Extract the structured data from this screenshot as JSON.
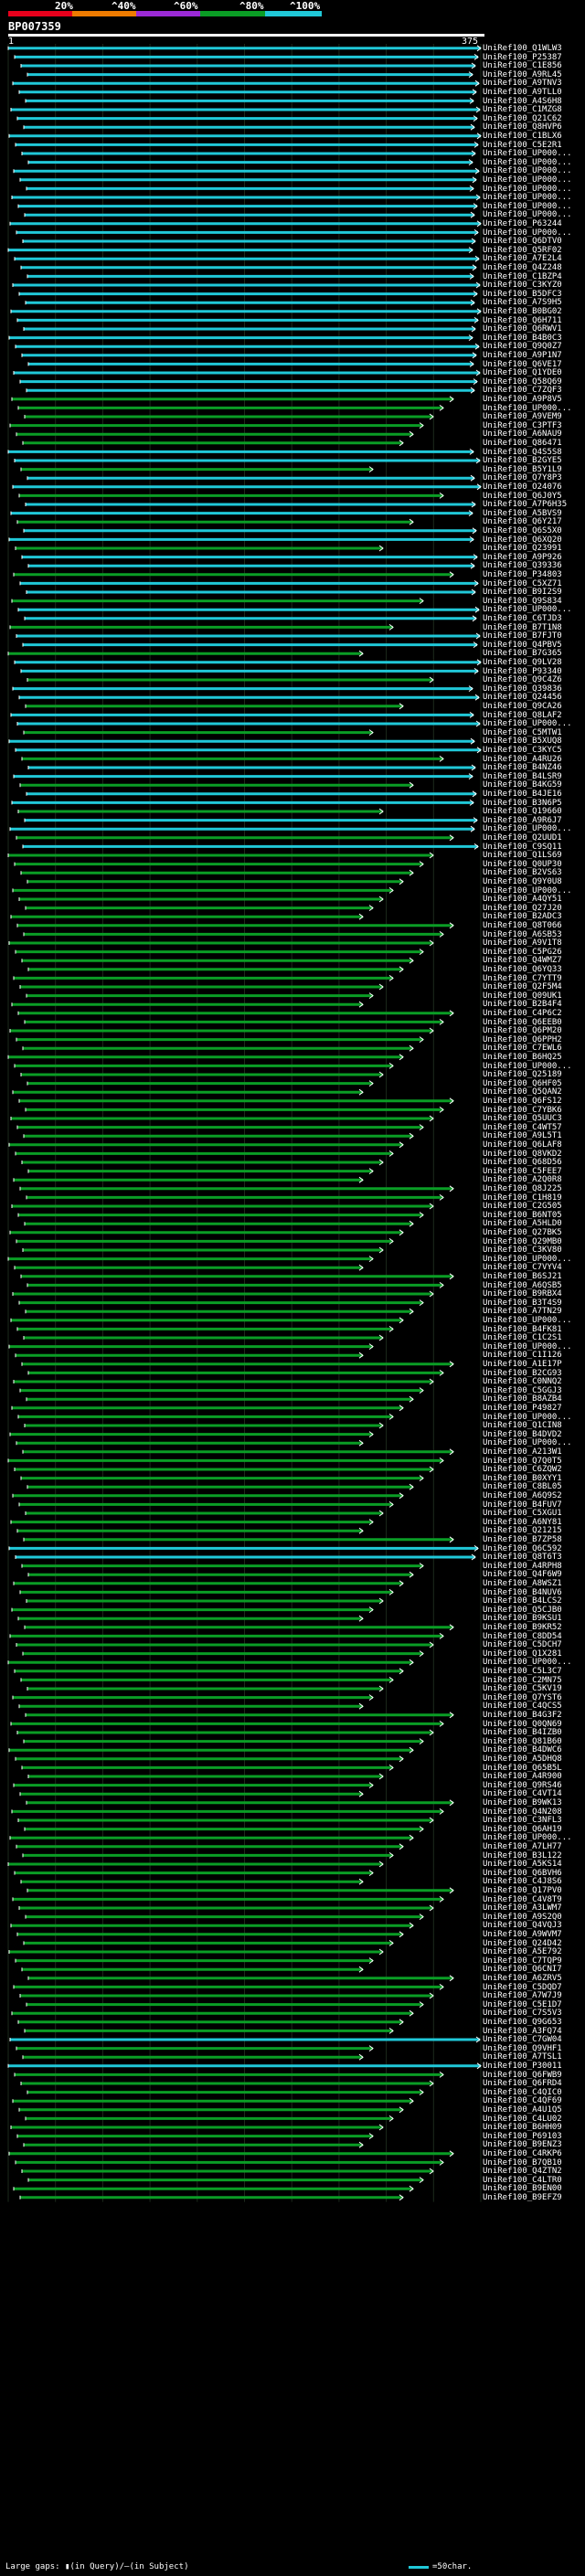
{
  "header": {
    "percent_labels": [
      "20%",
      "^40%",
      "^60%",
      "^80%",
      "^100%"
    ],
    "color_scale": [
      "#e8001c",
      "#ee7b00",
      "#9b2ad6",
      "#0a9d25",
      "#20c8d8"
    ],
    "query_id": "BP007359",
    "query_start": "1",
    "query_end": "375"
  },
  "hits": [
    "UniRef100_Q1WLW3",
    "UniRef100_P25387",
    "UniRef100_C1E856",
    "UniRef100_A9RL45",
    "UniRef100_A9TNV3",
    "UniRef100_A9TLL0",
    "UniRef100_A4S6H8",
    "UniRef100_C1MZG8",
    "UniRef100_Q21C62",
    "UniRef100_Q8HVP6",
    "UniRef100_C1BLX6",
    "UniRef100_C5E2R1",
    "UniRef100_UP000...",
    "UniRef100_UP000...",
    "UniRef100_UP000...",
    "UniRef100_UP000...",
    "UniRef100_UP000...",
    "UniRef100_UP000...",
    "UniRef100_UP000...",
    "UniRef100_UP000...",
    "UniRef100_P63244",
    "UniRef100_UP000...",
    "UniRef100_Q6DTV0",
    "UniRef100_Q5RF02",
    "UniRef100_A7E2L4",
    "UniRef100_Q4Z248",
    "UniRef100_C1BZP4",
    "UniRef100_C3KYZ0",
    "UniRef100_B5DFC3",
    "UniRef100_A7S9H5",
    "UniRef100_B0BG02",
    "UniRef100_Q6H711",
    "UniRef100_Q6RWV1",
    "UniRef100_B4B0C3",
    "UniRef100_Q9Q0Z7",
    "UniRef100_A9P1N7",
    "UniRef100_Q6VE17",
    "UniRef100_Q1YDE0",
    "UniRef100_Q58Q69",
    "UniRef100_C7ZQF3",
    "UniRef100_A9P8V5",
    "UniRef100_UP000...",
    "UniRef100_A9VEM9",
    "UniRef100_C3PTF3",
    "UniRef100_A6NAU9",
    "UniRef100_Q86471",
    "UniRef100_Q4S5S8",
    "UniRef100_B2GYE5",
    "UniRef100_B5Y1L9",
    "UniRef100_Q7Y8P3",
    "UniRef100_O24076",
    "UniRef100_Q6J0Y5",
    "UniRef100_A7P6H35",
    "UniRef100_A5BVS9",
    "UniRef100_Q6Y217",
    "UniRef100_Q6S5X0",
    "UniRef100_Q6XQ20",
    "UniRef100_Q23991",
    "UniRef100_A9P926",
    "UniRef100_Q39336",
    "UniRef100_P34803",
    "UniRef100_C5XZ71",
    "UniRef100_B9I2S9",
    "UniRef100_Q9S834",
    "UniRef100_UP000...",
    "UniRef100_C6TJD3",
    "UniRef100_B7T1N8",
    "UniRef100_B7FJT0",
    "UniRef100_Q4PBV5",
    "UniRef100_B7G365",
    "UniRef100_Q9LV28",
    "UniRef100_P93340",
    "UniRef100_Q9C4Z6",
    "UniRef100_Q39836",
    "UniRef100_Q24456",
    "UniRef100_Q9CA26",
    "UniRef100_Q8LAF2",
    "UniRef100_UP000...",
    "UniRef100_C5MTW1",
    "UniRef100_B5XUQ8",
    "UniRef100_C3KYC5",
    "UniRef100_A4RU26",
    "UniRef100_B4NZ46",
    "UniRef100_B4LSR9",
    "UniRef100_B4KG59",
    "UniRef100_B4JE16",
    "UniRef100_B3N6P5",
    "UniRef100_Q19660",
    "UniRef100_A9R6J7",
    "UniRef100_UP000...",
    "UniRef100_Q2UUD1",
    "UniRef100_C9SQ11",
    "UniRef100_Q1LS69",
    "UniRef100_Q0UP30",
    "UniRef100_B2VS63",
    "UniRef100_Q9Y0U8",
    "UniRef100_UP000...",
    "UniRef100_A4QY51",
    "UniRef100_Q27J20",
    "UniRef100_B2ADC3",
    "UniRef100_Q8T066",
    "UniRef100_A6SB53",
    "UniRef100_A9V1T8",
    "UniRef100_C5PG26",
    "UniRef100_Q4WMZ7",
    "UniRef100_Q6YQ33",
    "UniRef100_C7YTT9",
    "UniRef100_Q2F5M4",
    "UniRef100_Q09UK1",
    "UniRef100_B2B4F4",
    "UniRef100_C4P6C2",
    "UniRef100_Q6EEB0",
    "UniRef100_Q6PM20",
    "UniRef100_Q6PPH2",
    "UniRef100_C7EWL6",
    "UniRef100_B6HQ25",
    "UniRef100_UP000...",
    "UniRef100_Q25189",
    "UniRef100_Q6HF05",
    "UniRef100_Q5QAN2",
    "UniRef100_Q6FS12",
    "UniRef100_C7YBK6",
    "UniRef100_Q5UUC3",
    "UniRef100_C4WT57",
    "UniRef100_A9L5T1",
    "UniRef100_Q6LAF8",
    "UniRef100_Q8VKD2",
    "UniRef100_Q68D56",
    "UniRef100_C5FEE7",
    "UniRef100_A2Q0R8",
    "UniRef100_Q8J225",
    "UniRef100_C1H819",
    "UniRef100_C2G505",
    "UniRef100_B6NT05",
    "UniRef100_A5HLD0",
    "UniRef100_Q27BK5",
    "UniRef100_Q29MB0",
    "UniRef100_C3KV80",
    "UniRef100_UP000...",
    "UniRef100_C7VYV4",
    "UniRef100_B6SJ21",
    "UniRef100_A6QSB5",
    "UniRef100_B9RBX4",
    "UniRef100_B3T4S9",
    "UniRef100_A7TN29",
    "UniRef100_UP000...",
    "UniRef100_B4FK81",
    "UniRef100_C1C2S1",
    "UniRef100_UP000...",
    "UniRef100_C1I126",
    "UniRef100_A1E17P",
    "UniRef100_B2CG93",
    "UniRef100_C0NNQ2",
    "UniRef100_C5GGJ3",
    "UniRef100_B8AZB4",
    "UniRef100_P49827",
    "UniRef100_UP000...",
    "UniRef100_Q1CIN8",
    "UniRef100_B4DVD2",
    "UniRef100_UP000...",
    "UniRef100_A213W1",
    "UniRef100_Q7Q0T5",
    "UniRef100_C6ZQW2",
    "UniRef100_B0XYY1",
    "UniRef100_C8BL05",
    "UniRef100_A6Q9S2",
    "UniRef100_B4FUV7",
    "UniRef100_C5XGU1",
    "UniRef100_A6NY81",
    "UniRef100_Q21215",
    "UniRef100_B7ZP58",
    "UniRef100_Q6C592",
    "UniRef100_Q8T6T3",
    "UniRef100_A4RPH8",
    "UniRef100_Q4F6W9",
    "UniRef100_A8WSZ1",
    "UniRef100_B4NUV6",
    "UniRef100_B4LCS2",
    "UniRef100_Q5CJB0",
    "UniRef100_B9KSU1",
    "UniRef100_B9KR52",
    "UniRef100_C8DD54",
    "UniRef100_C5DCH7",
    "UniRef100_Q1X281",
    "UniRef100_UP000...",
    "UniRef100_C5L3C7",
    "UniRef100_C2MN75",
    "UniRef100_C5KV19",
    "UniRef100_Q7YST6",
    "UniRef100_C4QCS5",
    "UniRef100_B4G3F2",
    "UniRef100_Q0QN69",
    "UniRef100_B4IZB0",
    "UniRef100_Q81B60",
    "UniRef100_B4DWC6",
    "UniRef100_A5DHQ8",
    "UniRef100_Q65B5L",
    "UniRef100_A4R900",
    "UniRef100_Q9RS46",
    "UniRef100_C4VT14",
    "UniRef100_B9WK13",
    "UniRef100_Q4N208",
    "UniRef100_C3NFL3",
    "UniRef100_Q6AH19",
    "UniRef100_UP000...",
    "UniRef100_A7LH77",
    "UniRef100_B3L122",
    "UniRef100_A5KS14",
    "UniRef100_Q6BVH6",
    "UniRef100_C4J8S6",
    "UniRef100_Q17PV0",
    "UniRef100_C4V8T9",
    "UniRef100_A3LWM7",
    "UniRef100_A9S2Q0",
    "UniRef100_Q4VQJ3",
    "UniRef100_A9WVM7",
    "UniRef100_Q24D42",
    "UniRef100_A5E792",
    "UniRef100_C7TQP9",
    "UniRef100_Q6CNI7",
    "UniRef100_A6ZRV5",
    "UniRef100_C5DQD7",
    "UniRef100_A7W7J9",
    "UniRef100_C5E1D7",
    "UniRef100_C7S5V3",
    "UniRef100_Q9G653",
    "UniRef100_A3FQ74",
    "UniRef100_C7GW04",
    "UniRef100_Q9VHF1",
    "UniRef100_A7TSL1",
    "UniRef100_P30011",
    "UniRef100_Q6FWB9",
    "UniRef100_Q6FRD4",
    "UniRef100_C4QIC0",
    "UniRef100_C4QF69",
    "UniRef100_A4U1Q5",
    "UniRef100_C4LU02",
    "UniRef100_B6HH09",
    "UniRef100_P69103",
    "UniRef100_B9ENZ3",
    "UniRef100_C4RKP6",
    "UniRef100_B7QB10",
    "UniRef100_Q4ZTN2",
    "UniRef100_C4LTR0",
    "UniRef100_B9EN00",
    "UniRef100_B9EFZ9"
  ],
  "footer": {
    "gaps_text": "Large gaps: ▮(in Query)/—(in Subject)",
    "legend_text": "=50char."
  }
}
